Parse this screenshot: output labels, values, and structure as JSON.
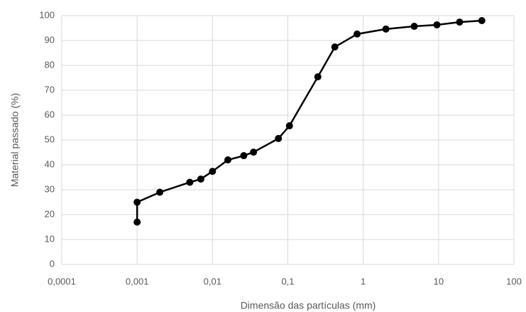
{
  "chart_data": {
    "type": "line",
    "x_label": "Dimensão das partículas (mm)",
    "y_label": "Material passado (%)",
    "x": [
      0.001,
      0.001,
      0.002,
      0.005,
      0.007,
      0.01,
      0.016,
      0.026,
      0.035,
      0.075,
      0.105,
      0.25,
      0.42,
      0.83,
      2,
      4.75,
      9.5,
      19,
      37.5
    ],
    "values": [
      17,
      25,
      29,
      33,
      34.3,
      37.4,
      42,
      43.7,
      45.1,
      50.6,
      55.7,
      75.4,
      87.4,
      92.6,
      94.6,
      95.7,
      96.3,
      97.4,
      98
    ],
    "color": "#000000",
    "xscale": "log",
    "xlim": [
      0.0001,
      100
    ],
    "xticks": [
      {
        "value": 0.0001,
        "label": "0,0001"
      },
      {
        "value": 0.001,
        "label": "0,001"
      },
      {
        "value": 0.01,
        "label": "0,01"
      },
      {
        "value": 0.1,
        "label": "0,1"
      },
      1,
      10,
      100
    ],
    "ylim": [
      0,
      100
    ],
    "yticks": [
      0,
      10,
      20,
      30,
      40,
      50,
      60,
      70,
      80,
      90,
      100
    ],
    "grid": true
  }
}
